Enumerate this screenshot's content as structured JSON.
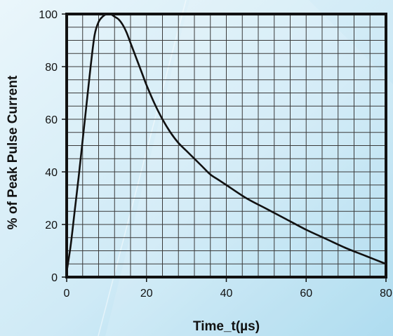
{
  "chart_data": {
    "type": "line",
    "xlabel": "Time_t(µs)",
    "ylabel": "% of Peak Pulse Current",
    "xlim": [
      0,
      80
    ],
    "ylim": [
      0,
      100
    ],
    "x_ticks": [
      0,
      20,
      40,
      60,
      80
    ],
    "y_ticks": [
      0,
      20,
      40,
      60,
      80,
      100
    ],
    "grid": true,
    "series": [
      {
        "x": [
          0,
          1,
          2,
          3,
          4,
          5,
          6,
          7,
          8,
          9,
          10,
          11,
          12,
          13,
          14,
          15,
          16,
          17,
          18,
          19,
          20,
          22,
          24,
          26,
          28,
          30,
          32,
          34,
          36,
          38,
          40,
          45,
          50,
          55,
          60,
          65,
          70,
          75,
          80
        ],
        "y": [
          2,
          12,
          25,
          38,
          52,
          66,
          80,
          92,
          97,
          99,
          100,
          100,
          99,
          98,
          96,
          93,
          89,
          85,
          81,
          77,
          73,
          66,
          60,
          55,
          51,
          48,
          45,
          42,
          39,
          37,
          35,
          30,
          26,
          22,
          18,
          14.5,
          11,
          8,
          5
        ],
        "color": "#111111"
      }
    ]
  },
  "style": {
    "background_gradient": [
      "#eaf6fb",
      "#cfeaf6",
      "#a4d8ee"
    ],
    "grid_color": "#3a3a3a",
    "frame_color": "#111111",
    "line_color": "#111111"
  }
}
